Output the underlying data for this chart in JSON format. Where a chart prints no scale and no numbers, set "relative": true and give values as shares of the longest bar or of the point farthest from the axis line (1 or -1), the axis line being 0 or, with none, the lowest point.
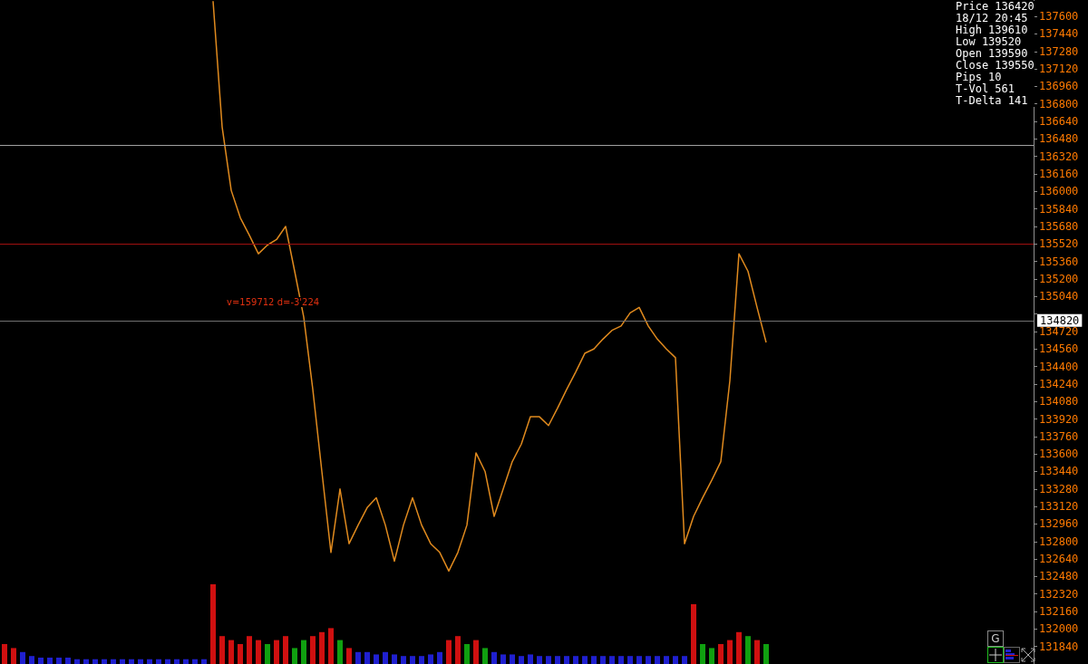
{
  "chart_data": [
    {
      "type": "line",
      "categories": [
        null,
        null,
        null,
        null,
        null,
        null,
        null,
        null,
        null,
        null,
        null,
        null,
        null,
        null,
        null,
        null,
        null,
        null,
        null,
        null,
        null,
        null,
        null,
        null,
        null,
        null,
        null,
        null,
        null,
        null,
        null,
        null,
        null,
        null,
        null,
        null,
        null,
        null,
        null,
        null,
        null,
        null,
        null,
        null,
        null,
        null,
        null,
        null,
        null,
        null,
        null,
        null,
        null,
        null,
        null,
        null,
        null,
        null,
        null,
        null,
        null,
        null,
        null,
        null,
        null,
        null,
        null,
        null,
        null,
        null,
        null,
        null,
        null,
        null,
        null,
        null,
        null,
        null,
        null,
        null,
        null,
        null,
        null,
        null,
        null,
        null,
        null,
        null,
        null,
        null,
        null,
        null,
        null,
        null,
        null,
        null,
        null,
        null,
        null,
        null,
        null,
        null,
        null,
        null,
        null,
        null,
        null,
        null,
        null,
        null,
        null,
        null,
        null,
        null
      ],
      "series": [
        {
          "color": "#e08a1e",
          "values": [
            null,
            null,
            null,
            null,
            null,
            null,
            null,
            null,
            null,
            null,
            null,
            null,
            null,
            null,
            null,
            null,
            null,
            null,
            null,
            null,
            null,
            null,
            null,
            137740,
            136590,
            136010,
            135760,
            135600,
            135430,
            135510,
            135560,
            135680,
            135270,
            134850,
            134190,
            133440,
            132700,
            133280,
            132780,
            132950,
            133110,
            133200,
            132950,
            132620,
            132950,
            133200,
            132950,
            132780,
            132700,
            132530,
            132700,
            132950,
            133610,
            133440,
            133030,
            133280,
            133530,
            133690,
            133940,
            133940,
            133860,
            134020,
            134190,
            134350,
            134520,
            134560,
            134650,
            134730,
            134770,
            134890,
            134940,
            134770,
            134650,
            134560,
            134480,
            132780,
            133030,
            133200,
            133360,
            133530,
            134270,
            135430,
            135270,
            134940,
            134620,
            null,
            null,
            null,
            null,
            null,
            null,
            null,
            null,
            null,
            null,
            null,
            null,
            null,
            null,
            null,
            null,
            null,
            null,
            null,
            null,
            null,
            null,
            null,
            null,
            null,
            null,
            null,
            null,
            null
          ]
        }
      ],
      "ylim": [
        131680,
        137750
      ],
      "yticks": [
        131840,
        132000,
        132160,
        132320,
        132480,
        132640,
        132800,
        132960,
        133120,
        133280,
        133440,
        133600,
        133760,
        133920,
        134080,
        134240,
        134400,
        134560,
        134720,
        {
          "value": 134880,
          "label": null
        },
        135040,
        135200,
        135360,
        135520,
        135680,
        135840,
        136000,
        136160,
        136320,
        136480,
        136640,
        136800,
        136960,
        137120,
        137280,
        137440,
        137600
      ],
      "tick_labels": "y",
      "grid": false,
      "marker": "none",
      "line_style": "solid",
      "ref_lines": [
        {
          "axis": "y",
          "value": 135520,
          "label": null,
          "color": "#a01010"
        },
        {
          "axis": "y",
          "value": 134820,
          "label": "134820",
          "color": "#707070"
        },
        {
          "axis": "y",
          "value": 136420,
          "label": null,
          "color": "#a0a0a0"
        }
      ],
      "annotations": [
        "Price 136420",
        "18/12 20:45",
        "High 139610",
        "Low 139520",
        "Open 139590",
        "Close 139550",
        "Pips 10",
        "T-Vol 561",
        "T-Delta 141",
        "v=159712 d=-3'224",
        "G"
      ]
    },
    {
      "type": "bar",
      "relative": true,
      "tick_labels": false,
      "grid": false,
      "categories": [
        null,
        null,
        null,
        null,
        null,
        null,
        null,
        null,
        null,
        null,
        null,
        null,
        null,
        null,
        null,
        null,
        null,
        null,
        null,
        null,
        null,
        null,
        null,
        null,
        null,
        null,
        null,
        null,
        null,
        null,
        null,
        null,
        null,
        null,
        null,
        null,
        null,
        null,
        null,
        null,
        null,
        null,
        null,
        null,
        null,
        null,
        null,
        null,
        null,
        null,
        null,
        null,
        null,
        null,
        null,
        null,
        null,
        null,
        null,
        null,
        null,
        null,
        null,
        null,
        null,
        null,
        null,
        null,
        null,
        null,
        null,
        null,
        null,
        null,
        null,
        null,
        null,
        null,
        null,
        null,
        null,
        null,
        null,
        null,
        null,
        null,
        null,
        null,
        null,
        null,
        null,
        null,
        null,
        null,
        null,
        null,
        null,
        null,
        null,
        null,
        null,
        null,
        null,
        null,
        null,
        null,
        null,
        null,
        null,
        null,
        null,
        null,
        null,
        null
      ],
      "values": [
        0.25,
        0.2,
        0.15,
        0.1,
        0.08,
        0.08,
        0.08,
        0.08,
        0.06,
        0.06,
        0.06,
        0.06,
        0.06,
        0.06,
        0.06,
        0.06,
        0.06,
        0.06,
        0.06,
        0.06,
        0.06,
        0.06,
        0.06,
        1,
        0.35,
        0.3,
        0.25,
        0.35,
        0.3,
        0.25,
        0.3,
        0.35,
        0.2,
        0.3,
        0.35,
        0.4,
        0.45,
        0.3,
        0.2,
        0.15,
        0.15,
        0.12,
        0.15,
        0.12,
        0.1,
        0.1,
        0.1,
        0.12,
        0.15,
        0.3,
        0.35,
        0.25,
        0.3,
        0.2,
        0.15,
        0.12,
        0.12,
        0.1,
        0.12,
        0.1,
        0.1,
        0.1,
        0.1,
        0.1,
        0.1,
        0.1,
        0.1,
        0.1,
        0.1,
        0.1,
        0.1,
        0.1,
        0.1,
        0.1,
        0.1,
        0.1,
        0.75,
        0.25,
        0.2,
        0.25,
        0.3,
        0.4,
        0.35,
        0.3,
        0.25,
        null,
        null,
        null,
        null,
        null,
        null,
        null,
        null,
        null,
        null,
        null,
        null,
        null,
        null,
        null,
        null,
        null,
        null,
        null,
        null,
        null,
        null,
        null,
        null,
        null,
        null,
        null,
        null,
        null
      ],
      "colors": [
        "#d01010",
        "#d01010",
        "#2020d0",
        "#2020d0",
        "#2020d0",
        "#2020d0",
        "#2020d0",
        "#2020d0",
        "#2020d0",
        "#2020d0",
        "#2020d0",
        "#2020d0",
        "#2020d0",
        "#2020d0",
        "#2020d0",
        "#2020d0",
        "#2020d0",
        "#2020d0",
        "#2020d0",
        "#2020d0",
        "#2020d0",
        "#2020d0",
        "#2020d0",
        "#d01010",
        "#d01010",
        "#d01010",
        "#d01010",
        "#d01010",
        "#d01010",
        "#10a010",
        "#d01010",
        "#d01010",
        "#10a010",
        "#10a010",
        "#d01010",
        "#d01010",
        "#d01010",
        "#10a010",
        "#d01010",
        "#2020d0",
        "#2020d0",
        "#2020d0",
        "#2020d0",
        "#2020d0",
        "#2020d0",
        "#2020d0",
        "#2020d0",
        "#2020d0",
        "#2020d0",
        "#d01010",
        "#d01010",
        "#10a010",
        "#d01010",
        "#10a010",
        "#2020d0",
        "#2020d0",
        "#2020d0",
        "#2020d0",
        "#2020d0",
        "#2020d0",
        "#2020d0",
        "#2020d0",
        "#2020d0",
        "#2020d0",
        "#2020d0",
        "#2020d0",
        "#2020d0",
        "#2020d0",
        "#2020d0",
        "#2020d0",
        "#2020d0",
        "#2020d0",
        "#2020d0",
        "#2020d0",
        "#2020d0",
        "#2020d0",
        "#d01010",
        "#10a010",
        "#10a010",
        "#d01010",
        "#d01010",
        "#d01010",
        "#10a010",
        "#d01010",
        "#10a010",
        "#2020d0",
        "#2020d0",
        "#2020d0",
        "#2020d0",
        "#2020d0",
        "#2020d0",
        "#2020d0",
        "#2020d0",
        "#2020d0",
        "#2020d0",
        "#2020d0",
        "#2020d0",
        "#2020d0",
        "#2020d0",
        "#2020d0",
        "#2020d0",
        "#2020d0",
        "#2020d0",
        "#2020d0",
        "#2020d0",
        "#2020d0",
        "#2020d0",
        "#2020d0",
        "#2020d0",
        "#2020d0",
        "#2020d0",
        "#2020d0",
        "#2020d0",
        "#2020d0"
      ]
    }
  ]
}
